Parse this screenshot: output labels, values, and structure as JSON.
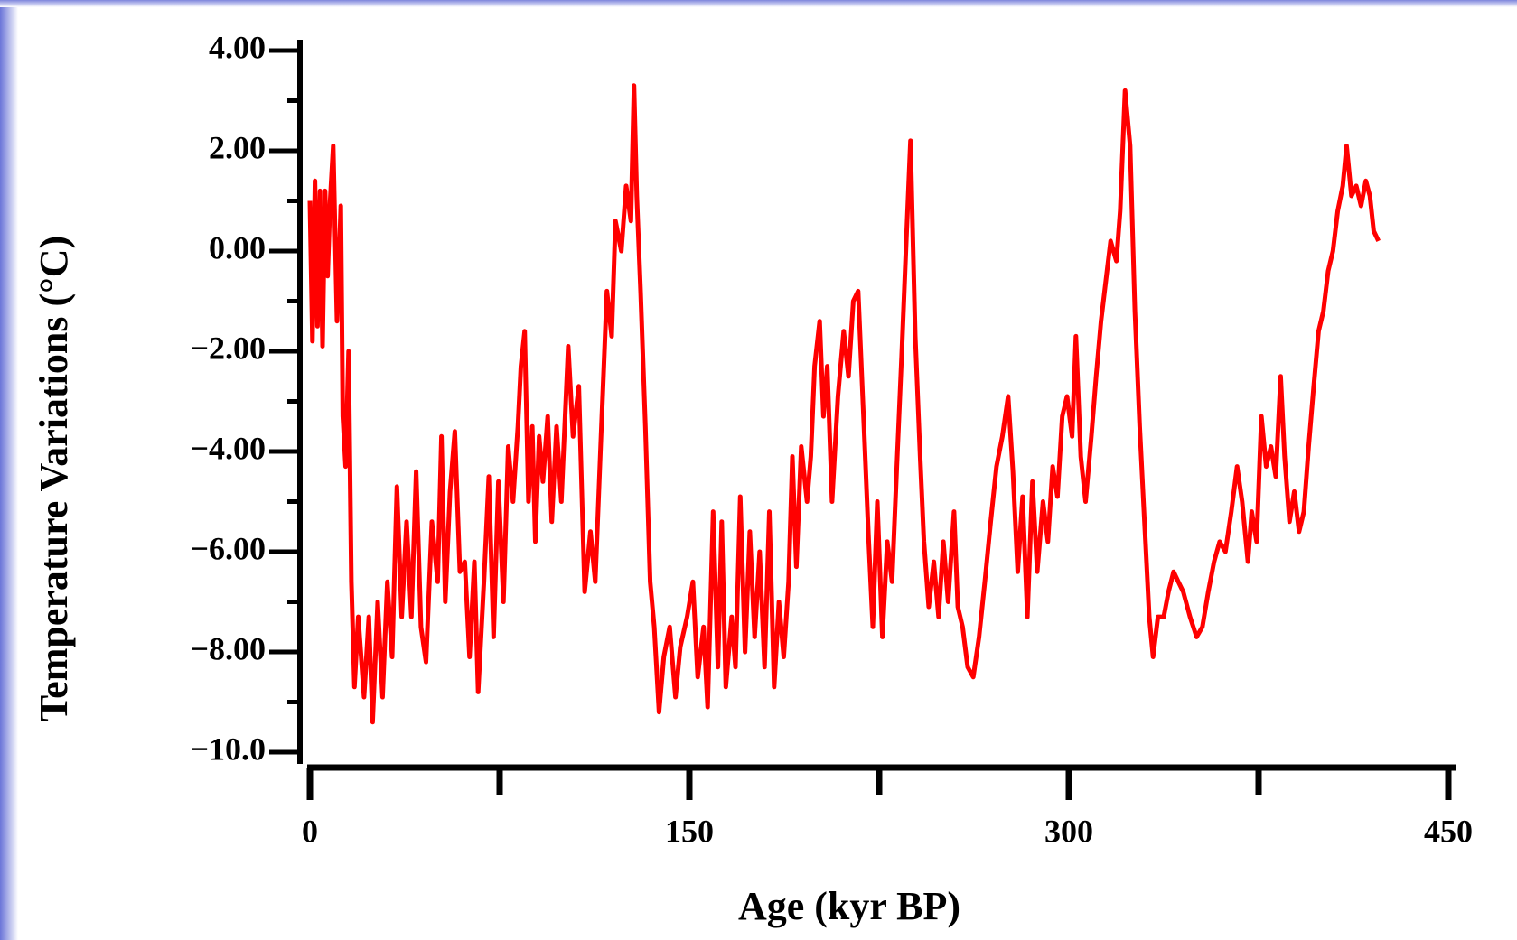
{
  "chart_data": {
    "type": "line",
    "y_label": "Temperature Variations (°C)",
    "x_label": "Age (kyr BP)",
    "color": "#ff0000",
    "xlim": [
      0,
      450
    ],
    "xticks": [
      0,
      150,
      300,
      450
    ],
    "xminorticks": [
      75,
      225,
      375
    ],
    "ylim": [
      -10,
      4
    ],
    "yticks": [
      {
        "value": 4,
        "label": "4.00"
      },
      {
        "value": 2,
        "label": "2.00"
      },
      {
        "value": 0,
        "label": "0.00"
      },
      {
        "value": -2,
        "label": "−2.00"
      },
      {
        "value": -4,
        "label": "−4.00"
      },
      {
        "value": -6,
        "label": "−6.00"
      },
      {
        "value": -8,
        "label": "−8.00"
      },
      {
        "value": -10,
        "label": "−10.0"
      }
    ],
    "yminorticks": [
      3,
      1,
      -1,
      -3,
      -5,
      -7,
      -9
    ],
    "x": [
      0,
      1,
      2,
      3,
      4,
      5,
      6,
      7,
      8,
      9.2,
      10.7,
      12.2,
      13,
      14.1,
      15.3,
      16.4,
      17.6,
      19.1,
      21.4,
      23.3,
      24.8,
      26.8,
      28.7,
      30.6,
      32.5,
      34.4,
      36.3,
      38.2,
      40.1,
      42,
      43.9,
      45.9,
      48.2,
      50.5,
      52,
      53.5,
      55.4,
      57.3,
      59.3,
      61.2,
      63.1,
      65,
      66.5,
      68.8,
      70.7,
      72.6,
      74.5,
      76.5,
      78.4,
      80.3,
      82.2,
      83.4,
      84.9,
      86.4,
      87.9,
      89.1,
      90.6,
      92.1,
      94,
      95.6,
      97.5,
      99.4,
      102.1,
      104,
      106.3,
      108.6,
      110.9,
      112.8,
      115.4,
      117.4,
      119.3,
      120.8,
      123.1,
      125,
      126.9,
      128.1,
      129.2,
      130.7,
      132.6,
      134.5,
      136.1,
      138,
      139.9,
      142.2,
      144.5,
      146.4,
      149.1,
      151.4,
      153.3,
      155.6,
      157.2,
      159.4,
      161.3,
      162.8,
      164.4,
      166.7,
      168.2,
      170.1,
      172,
      173.9,
      175.8,
      177.8,
      179.7,
      181.6,
      183.5,
      185.4,
      187.3,
      189.2,
      190.7,
      192.3,
      194.2,
      196.5,
      198,
      199.5,
      201.5,
      203,
      204.5,
      206.4,
      208.7,
      211,
      212.9,
      214.8,
      216.7,
      219,
      220.9,
      222.5,
      224.3,
      226.3,
      228.2,
      230.1,
      232,
      233.9,
      235.9,
      237.4,
      239.3,
      241.2,
      242.7,
      244.6,
      246.6,
      248.5,
      250.4,
      252.3,
      254.6,
      256.1,
      258,
      260,
      262.2,
      264.5,
      266.8,
      269.1,
      271.4,
      273.7,
      276,
      277.9,
      279.8,
      281.7,
      283.6,
      285.6,
      287.5,
      289.8,
      291.7,
      293.6,
      295.5,
      297.4,
      299.3,
      301.3,
      302.8,
      304.7,
      306.6,
      308.9,
      310.8,
      312.7,
      314.6,
      316.5,
      318.8,
      320.3,
      322.2,
      324.2,
      326.1,
      328,
      329.9,
      331.8,
      333.3,
      335.2,
      337.5,
      339.4,
      341.4,
      343.3,
      345.2,
      347.9,
      350.5,
      352.8,
      355.1,
      357.4,
      359.6,
      361.9,
      364.2,
      366.5,
      368.5,
      370.8,
      372.3,
      374.2,
      376.1,
      378,
      379.9,
      381.8,
      383.7,
      385.3,
      387.2,
      389.1,
      391,
      392.9,
      394.8,
      396.8,
      398.7,
      400.6,
      402.5,
      404.4,
      406.3,
      408.3,
      409.8,
      411.7,
      413.6,
      415.5,
      417.4,
      419,
      420.5,
      422.4
    ],
    "values": [
      1.0,
      -1.8,
      1.4,
      -1.5,
      1.2,
      -1.9,
      1.2,
      -0.5,
      1.0,
      2.1,
      -1.4,
      0.9,
      -3.3,
      -4.3,
      -2.0,
      -6.6,
      -8.7,
      -7.3,
      -8.9,
      -7.3,
      -9.4,
      -7.0,
      -8.9,
      -6.6,
      -8.1,
      -4.7,
      -7.3,
      -5.4,
      -7.3,
      -4.4,
      -7.5,
      -8.2,
      -5.4,
      -6.6,
      -3.7,
      -7.0,
      -4.8,
      -3.6,
      -6.4,
      -6.2,
      -8.1,
      -6.2,
      -8.8,
      -6.6,
      -4.5,
      -7.7,
      -4.6,
      -7.0,
      -3.9,
      -5.0,
      -3.5,
      -2.3,
      -1.6,
      -5.0,
      -3.5,
      -5.8,
      -3.7,
      -4.6,
      -3.3,
      -5.4,
      -3.5,
      -5.0,
      -1.9,
      -3.7,
      -2.7,
      -6.8,
      -5.6,
      -6.6,
      -3.3,
      -0.8,
      -1.7,
      0.6,
      0.0,
      1.3,
      0.6,
      3.3,
      1.1,
      -0.8,
      -3.5,
      -6.6,
      -7.5,
      -9.2,
      -8.1,
      -7.5,
      -8.9,
      -7.9,
      -7.3,
      -6.6,
      -8.5,
      -7.5,
      -9.1,
      -5.2,
      -8.3,
      -5.4,
      -8.7,
      -7.3,
      -8.3,
      -4.9,
      -8.0,
      -5.6,
      -7.7,
      -6.0,
      -8.3,
      -5.2,
      -8.7,
      -7.0,
      -8.1,
      -6.6,
      -4.1,
      -6.3,
      -3.9,
      -5.0,
      -4.1,
      -2.3,
      -1.4,
      -3.3,
      -2.3,
      -5.0,
      -2.9,
      -1.6,
      -2.5,
      -1.0,
      -0.8,
      -3.5,
      -5.8,
      -7.5,
      -5.0,
      -7.7,
      -5.8,
      -6.6,
      -4.3,
      -2.1,
      0.4,
      2.2,
      -1.7,
      -4.1,
      -5.8,
      -7.1,
      -6.2,
      -7.3,
      -5.8,
      -7.0,
      -5.2,
      -7.1,
      -7.5,
      -8.3,
      -8.5,
      -7.7,
      -6.6,
      -5.4,
      -4.3,
      -3.7,
      -2.9,
      -4.4,
      -6.4,
      -4.9,
      -7.3,
      -4.6,
      -6.4,
      -5.0,
      -5.8,
      -4.3,
      -4.9,
      -3.3,
      -2.9,
      -3.7,
      -1.7,
      -4.1,
      -5.0,
      -3.7,
      -2.5,
      -1.4,
      -0.6,
      0.2,
      -0.2,
      0.8,
      3.2,
      2.1,
      -1.2,
      -3.5,
      -5.4,
      -7.3,
      -8.1,
      -7.3,
      -7.3,
      -6.8,
      -6.4,
      -6.6,
      -6.8,
      -7.3,
      -7.7,
      -7.5,
      -6.8,
      -6.2,
      -5.8,
      -6.0,
      -5.2,
      -4.3,
      -5.0,
      -6.2,
      -5.2,
      -5.8,
      -3.3,
      -4.3,
      -3.9,
      -4.5,
      -2.5,
      -4.1,
      -5.4,
      -4.8,
      -5.6,
      -5.2,
      -3.9,
      -2.7,
      -1.6,
      -1.2,
      -0.4,
      0.0,
      0.8,
      1.3,
      2.1,
      1.1,
      1.3,
      0.9,
      1.4,
      1.1,
      0.4,
      0.2
    ]
  }
}
